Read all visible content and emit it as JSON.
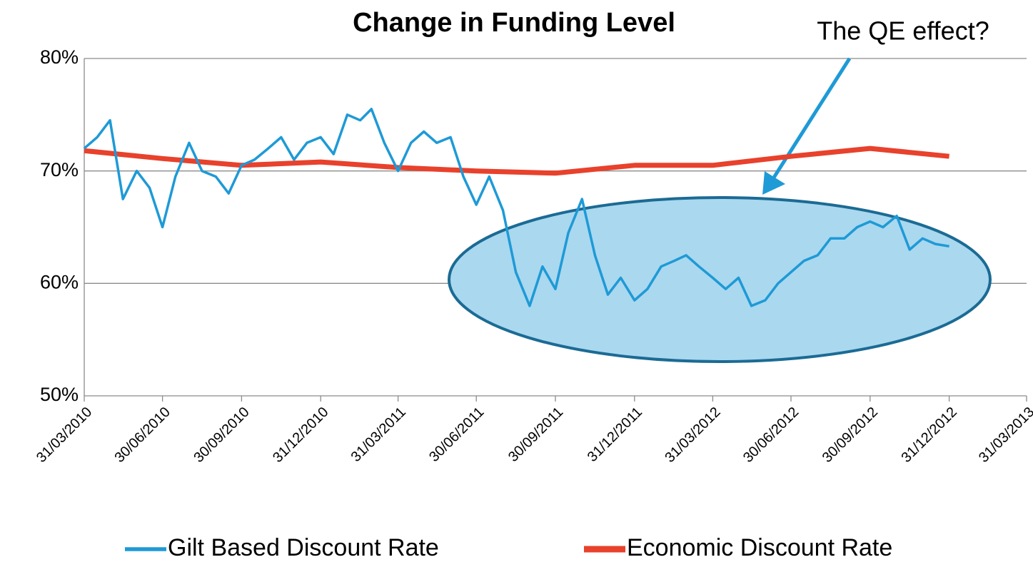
{
  "chart_data": {
    "type": "line",
    "title": "Change in Funding Level",
    "annotation": "The QE effect?",
    "ylim": [
      50,
      80
    ],
    "yticks": [
      {
        "value": 50,
        "label": "50%"
      },
      {
        "value": 60,
        "label": "60%"
      },
      {
        "value": 70,
        "label": "70%"
      },
      {
        "value": 80,
        "label": "80%"
      }
    ],
    "xlim": [
      "31/03/2010",
      "31/03/2013"
    ],
    "xticks": [
      "31/03/2010",
      "30/06/2010",
      "30/09/2010",
      "31/12/2010",
      "31/03/2011",
      "30/06/2011",
      "30/09/2011",
      "31/12/2011",
      "31/03/2012",
      "30/06/2012",
      "30/09/2012",
      "31/12/2012",
      "31/03/2013"
    ],
    "grid": true,
    "legend": "bottom",
    "series": [
      {
        "name": "Gilt Based Discount Rate",
        "color": "#1e9ad6",
        "x": [
          "31/03/2010",
          "15/04/2010",
          "30/04/2010",
          "15/05/2010",
          "31/05/2010",
          "15/06/2010",
          "30/06/2010",
          "15/07/2010",
          "31/07/2010",
          "15/08/2010",
          "31/08/2010",
          "15/09/2010",
          "30/09/2010",
          "15/10/2010",
          "31/10/2010",
          "15/11/2010",
          "30/11/2010",
          "15/12/2010",
          "31/12/2010",
          "15/01/2011",
          "31/01/2011",
          "15/02/2011",
          "28/02/2011",
          "15/03/2011",
          "31/03/2011",
          "15/04/2011",
          "30/04/2011",
          "15/05/2011",
          "31/05/2011",
          "15/06/2011",
          "30/06/2011",
          "15/07/2011",
          "31/07/2011",
          "15/08/2011",
          "31/08/2011",
          "15/09/2011",
          "30/09/2011",
          "15/10/2011",
          "31/10/2011",
          "15/11/2011",
          "30/11/2011",
          "15/12/2011",
          "31/12/2011",
          "15/01/2012",
          "31/01/2012",
          "15/02/2012",
          "29/02/2012",
          "15/03/2012",
          "31/03/2012",
          "15/04/2012",
          "30/04/2012",
          "15/05/2012",
          "31/05/2012",
          "15/06/2012",
          "30/06/2012",
          "15/07/2012",
          "31/07/2012",
          "15/08/2012",
          "31/08/2012",
          "15/09/2012",
          "30/09/2012",
          "15/10/2012",
          "31/10/2012",
          "15/11/2012",
          "30/11/2012",
          "15/12/2012",
          "31/12/2012"
        ],
        "values": [
          72,
          73,
          74.5,
          67.5,
          70,
          68.5,
          65,
          69.5,
          72.5,
          70,
          69.5,
          68,
          70.5,
          71,
          72,
          73,
          71,
          72.5,
          73,
          71.5,
          75,
          74.5,
          75.5,
          72.5,
          70,
          72.5,
          73.5,
          72.5,
          73,
          69.5,
          67,
          69.5,
          66.5,
          61,
          58,
          61.5,
          59.5,
          64.5,
          67.5,
          62.5,
          59,
          60.5,
          58.5,
          59.5,
          61.5,
          62,
          62.5,
          61.5,
          60.5,
          59.5,
          60.5,
          58,
          58.5,
          60,
          61,
          62,
          62.5,
          64,
          64,
          65,
          65.5,
          65,
          66,
          63,
          64,
          63.5,
          63.3
        ]
      },
      {
        "name": "Economic Discount Rate",
        "color": "#e8412c",
        "x": [
          "31/03/2010",
          "30/06/2010",
          "30/09/2010",
          "31/12/2010",
          "31/03/2011",
          "30/06/2011",
          "30/09/2011",
          "31/12/2011",
          "31/03/2012",
          "30/06/2012",
          "30/09/2012",
          "31/12/2012"
        ],
        "values": [
          71.8,
          71.1,
          70.5,
          70.8,
          70.3,
          70,
          69.8,
          70.5,
          70.5,
          71.3,
          72,
          71.3
        ]
      }
    ]
  }
}
